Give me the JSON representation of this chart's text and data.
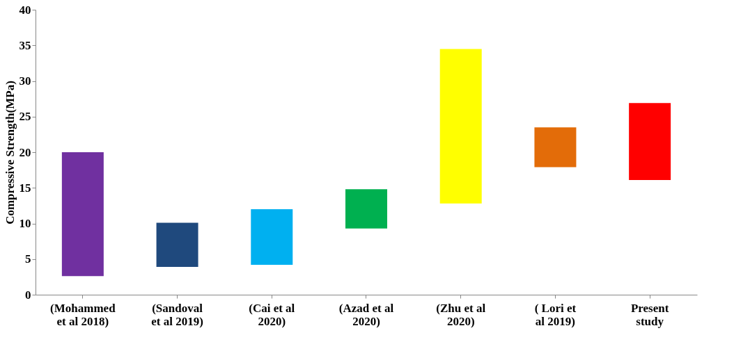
{
  "chart_data": {
    "type": "bar",
    "ylabel": "Compressive Strength(MPa)",
    "categories": [
      "(Mohammed et al 2018)",
      "(Sandoval et al 2019)",
      "(Cai et al 2020)",
      "(Azad et al 2020)",
      "(Zhu et al 2020)",
      "( Lori et al 2019)",
      "Present study"
    ],
    "base": [
      2.6,
      3.9,
      4.2,
      9.3,
      12.8,
      17.9,
      16.1
    ],
    "values": [
      17.4,
      6.2,
      7.8,
      5.5,
      21.7,
      5.6,
      10.8
    ],
    "colors": [
      "#7030a0",
      "#1f497d",
      "#00b0f0",
      "#00b050",
      "#ffff00",
      "#e36c09",
      "#ff0000"
    ],
    "ylim": [
      0,
      40
    ],
    "yticks": [
      0,
      5,
      10,
      15,
      20,
      25,
      30,
      35,
      40
    ],
    "grid": false
  }
}
